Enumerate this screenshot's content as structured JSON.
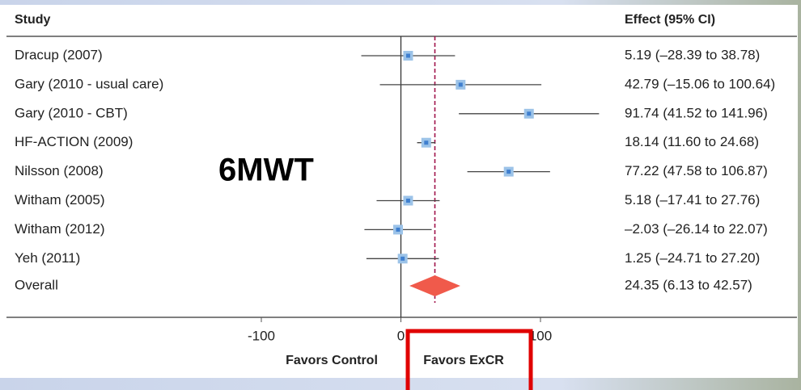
{
  "chart_data": {
    "type": "forest",
    "header_study": "Study",
    "header_effect": "Effect (95% CI)",
    "annotation": "6MWT",
    "xlim": [
      -100,
      100
    ],
    "xticks": [
      -100,
      0,
      100
    ],
    "reference_line": 0,
    "x_label_left": "Favors Control",
    "x_label_right": "Favors ExCR",
    "marker_color": "#9cc3e8",
    "diamond_color": "#f05a4b",
    "studies": [
      {
        "name": "Dracup (2007)",
        "effect": 5.19,
        "lower": -28.39,
        "upper": 38.78,
        "label": "5.19 (–28.39 to 38.78)"
      },
      {
        "name": "Gary (2010 - usual care)",
        "effect": 42.79,
        "lower": -15.06,
        "upper": 100.64,
        "label": "42.79 (–15.06 to 100.64)"
      },
      {
        "name": "Gary (2010 - CBT)",
        "effect": 91.74,
        "lower": 41.52,
        "upper": 141.96,
        "label": "91.74 (41.52 to 141.96)"
      },
      {
        "name": "HF-ACTION (2009)",
        "effect": 18.14,
        "lower": 11.6,
        "upper": 24.68,
        "label": "18.14 (11.60 to 24.68)"
      },
      {
        "name": "Nilsson (2008)",
        "effect": 77.22,
        "lower": 47.58,
        "upper": 106.87,
        "label": "77.22 (47.58 to 106.87)"
      },
      {
        "name": "Witham (2005)",
        "effect": 5.18,
        "lower": -17.41,
        "upper": 27.76,
        "label": "5.18 (–17.41 to 27.76)"
      },
      {
        "name": "Witham (2012)",
        "effect": -2.03,
        "lower": -26.14,
        "upper": 22.07,
        "label": "–2.03 (–26.14 to 22.07)"
      },
      {
        "name": "Yeh (2011)",
        "effect": 1.25,
        "lower": -24.71,
        "upper": 27.2,
        "label": "1.25 (–24.71 to 27.20)"
      }
    ],
    "overall": {
      "name": "Overall",
      "effect": 24.35,
      "lower": 6.13,
      "upper": 42.57,
      "label": "24.35 (6.13 to 42.57)"
    }
  }
}
